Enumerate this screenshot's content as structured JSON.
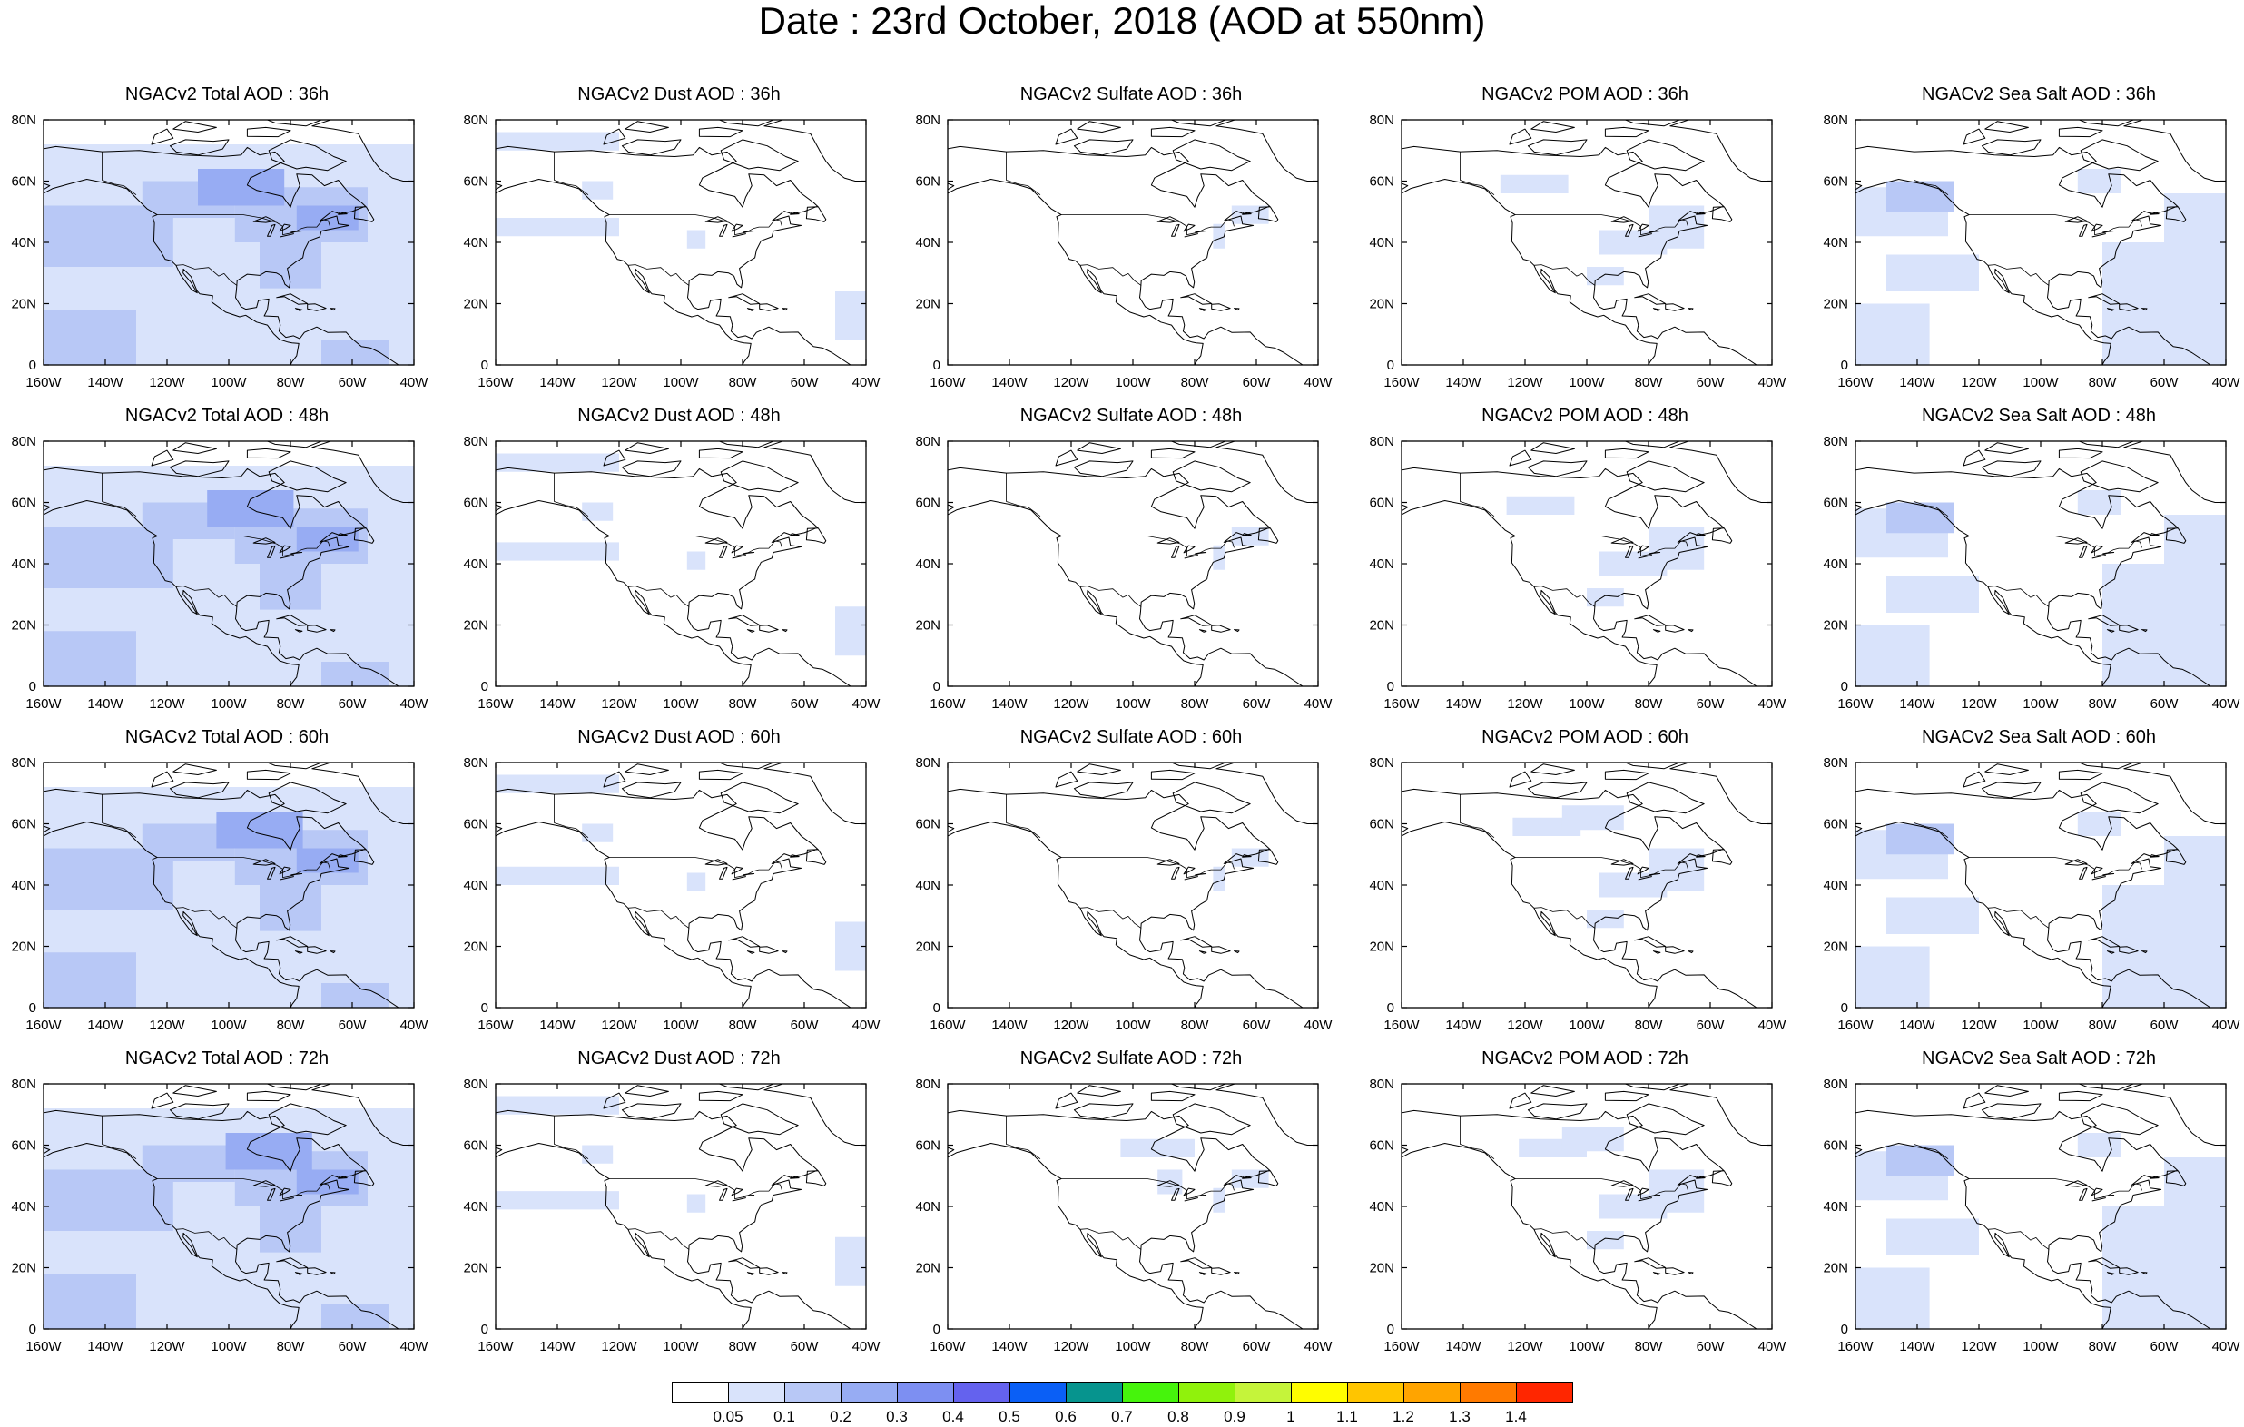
{
  "title": "Date : 23rd October, 2018 (AOD at 550nm)",
  "map": {
    "lon_range": [
      -160,
      -40
    ],
    "lat_range": [
      0,
      80
    ],
    "x_ticks": [
      "160W",
      "140W",
      "120W",
      "100W",
      "80W",
      "60W",
      "40W"
    ],
    "y_ticks": [
      "0",
      "20N",
      "40N",
      "60N",
      "80N"
    ]
  },
  "panels": [
    {
      "title": "NGACv2 Total AOD : 36h",
      "variable": "total",
      "hour": 36
    },
    {
      "title": "NGACv2 Dust AOD : 36h",
      "variable": "dust",
      "hour": 36
    },
    {
      "title": "NGACv2 Sulfate AOD : 36h",
      "variable": "sulfate",
      "hour": 36
    },
    {
      "title": "NGACv2 POM AOD : 36h",
      "variable": "pom",
      "hour": 36
    },
    {
      "title": "NGACv2 Sea Salt AOD : 36h",
      "variable": "seasalt",
      "hour": 36
    },
    {
      "title": "NGACv2 Total AOD : 48h",
      "variable": "total",
      "hour": 48
    },
    {
      "title": "NGACv2 Dust AOD : 48h",
      "variable": "dust",
      "hour": 48
    },
    {
      "title": "NGACv2 Sulfate AOD : 48h",
      "variable": "sulfate",
      "hour": 48
    },
    {
      "title": "NGACv2 POM AOD : 48h",
      "variable": "pom",
      "hour": 48
    },
    {
      "title": "NGACv2 Sea Salt AOD : 48h",
      "variable": "seasalt",
      "hour": 48
    },
    {
      "title": "NGACv2 Total AOD : 60h",
      "variable": "total",
      "hour": 60
    },
    {
      "title": "NGACv2 Dust AOD : 60h",
      "variable": "dust",
      "hour": 60
    },
    {
      "title": "NGACv2 Sulfate AOD : 60h",
      "variable": "sulfate",
      "hour": 60
    },
    {
      "title": "NGACv2 POM AOD : 60h",
      "variable": "pom",
      "hour": 60
    },
    {
      "title": "NGACv2 Sea Salt AOD : 60h",
      "variable": "seasalt",
      "hour": 60
    },
    {
      "title": "NGACv2 Total AOD : 72h",
      "variable": "total",
      "hour": 72
    },
    {
      "title": "NGACv2 Dust AOD : 72h",
      "variable": "dust",
      "hour": 72
    },
    {
      "title": "NGACv2 Sulfate AOD : 72h",
      "variable": "sulfate",
      "hour": 72
    },
    {
      "title": "NGACv2 POM AOD : 72h",
      "variable": "pom",
      "hour": 72
    },
    {
      "title": "NGACv2 Sea Salt  AOD : 72h",
      "variable": "seasalt",
      "hour": 72
    }
  ],
  "colorbar": {
    "colors": [
      "#ffffff",
      "#d9e3fb",
      "#b8c8f6",
      "#97acf3",
      "#7d8ff2",
      "#6462ee",
      "#0a5ff6",
      "#06948e",
      "#46f40c",
      "#90f20c",
      "#c5f43a",
      "#fffd00",
      "#ffc500",
      "#ffa400",
      "#ff7a00",
      "#ff2600"
    ],
    "labels": [
      "0.05",
      "0.1",
      "0.2",
      "0.3",
      "0.4",
      "0.5",
      "0.6",
      "0.7",
      "0.8",
      "0.9",
      "1",
      "1.1",
      "1.2",
      "1.3",
      "1.4"
    ]
  },
  "colors": {
    "frame": "#000000",
    "coastline": "#000000",
    "aod_low": "#d9e3fb",
    "aod_mid": "#b8c8f6",
    "aod_high": "#97acf3"
  }
}
